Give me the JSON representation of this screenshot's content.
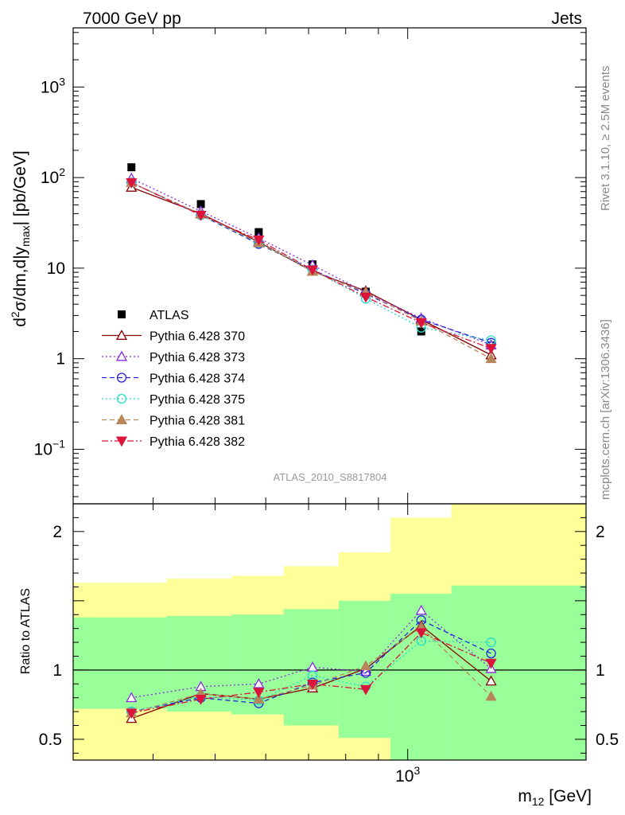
{
  "header": {
    "energy_label": "7000 GeV pp",
    "process_label": "Jets"
  },
  "side_text": {
    "rivet": "Rivet 3.1.10, ≥ 2.5M events",
    "source": "mcplots.cern.ch [arXiv:1306.3436]"
  },
  "analysis_id": "ATLAS_2010_S8817804",
  "colors": {
    "ATLAS": "#000000",
    "370": "#8b0000",
    "373": "#8a2be2",
    "374": "#2222dd",
    "375": "#22ddcc",
    "381": "#b8865b",
    "382": "#dc143c",
    "band_inner": "#99ff99",
    "band_outer": "#ffff99"
  },
  "chart_data": [
    {
      "type": "scatter",
      "panel": "main",
      "xlabel": "m12 [GeV]",
      "ylabel": "d2σ/dm,d|ymax| [pb/GeV]",
      "yscale": "log",
      "xscale": "log",
      "ylim": [
        0.025,
        4500
      ],
      "xlim": [
        300,
        1900
      ],
      "x": [
        370,
        475,
        585,
        710,
        860,
        1050,
        1350
      ],
      "legend_placement": "lower-left",
      "series": [
        {
          "name": "ATLAS",
          "marker": "filled-square",
          "values": [
            130,
            51,
            25,
            11,
            5.5,
            2.0,
            1.4
          ]
        },
        {
          "name": "Pythia 6.428 370",
          "marker": "open-triangle-up",
          "line": "solid",
          "values": [
            78,
            40,
            19.5,
            9.2,
            5.6,
            2.7,
            1.1
          ]
        },
        {
          "name": "Pythia 6.428 373",
          "marker": "open-triangle-up",
          "line": "dotted",
          "values": [
            98,
            42.5,
            21.5,
            10.8,
            5.4,
            2.8,
            1.42
          ]
        },
        {
          "name": "Pythia 6.428 374",
          "marker": "open-circle",
          "line": "dashed",
          "values": [
            88,
            38.5,
            18.5,
            9.6,
            5.2,
            2.7,
            1.5
          ]
        },
        {
          "name": "Pythia 6.428 375",
          "marker": "open-circle",
          "line": "dotted",
          "values": [
            88,
            38.5,
            19.0,
            9.6,
            4.6,
            2.2,
            1.6
          ]
        },
        {
          "name": "Pythia 6.428 381",
          "marker": "filled-triangle-up",
          "line": "dashed",
          "values": [
            88,
            39.5,
            19.0,
            9.2,
            5.4,
            2.6,
            1.0
          ]
        },
        {
          "name": "Pythia 6.428 382",
          "marker": "filled-triangle-down",
          "line": "dashdot",
          "values": [
            88,
            38.5,
            20.5,
            9.6,
            4.8,
            2.5,
            1.3
          ]
        }
      ],
      "y_ticks": [
        "10−1",
        "1",
        "10",
        "102",
        "103"
      ]
    },
    {
      "type": "scatter",
      "panel": "ratio",
      "ylabel": "Ratio to ATLAS",
      "xlabel": "m12 [GeV]",
      "ylim": [
        0.35,
        2.2
      ],
      "x": [
        370,
        475,
        585,
        710,
        860,
        1050,
        1350
      ],
      "x_ticks": [
        "103"
      ],
      "y_ticks": [
        "0.5",
        "1",
        "2"
      ],
      "band_edges": [
        300,
        420,
        530,
        640,
        780,
        940,
        1170,
        1900
      ],
      "inner_band": {
        "low": [
          0.72,
          0.7,
          0.68,
          0.6,
          0.51,
          0.0,
          0.0
        ],
        "high": [
          1.38,
          1.39,
          1.4,
          1.44,
          1.5,
          1.55,
          1.61
        ]
      },
      "outer_band": {
        "low": [
          0.0,
          0.0,
          0.0,
          0.0,
          0.0,
          0.0,
          0.0
        ],
        "high": [
          1.63,
          1.66,
          1.68,
          1.75,
          1.85,
          2.1,
          2.3
        ]
      },
      "series": [
        {
          "name": "Pythia 6.428 370",
          "values": [
            0.65,
            0.83,
            0.79,
            0.87,
            1.01,
            1.32,
            0.92
          ]
        },
        {
          "name": "Pythia 6.428 373",
          "values": [
            0.8,
            0.88,
            0.9,
            1.02,
            0.99,
            1.43,
            1.01
          ]
        },
        {
          "name": "Pythia 6.428 374",
          "values": [
            0.7,
            0.8,
            0.76,
            0.91,
            0.98,
            1.36,
            1.12
          ]
        },
        {
          "name": "Pythia 6.428 375",
          "values": [
            0.7,
            0.81,
            0.78,
            0.96,
            0.88,
            1.21,
            1.2
          ]
        },
        {
          "name": "Pythia 6.428 381",
          "values": [
            0.69,
            0.83,
            0.79,
            0.89,
            1.03,
            1.31,
            0.81
          ]
        },
        {
          "name": "Pythia 6.428 382",
          "values": [
            0.69,
            0.79,
            0.84,
            0.9,
            0.86,
            1.27,
            1.05
          ]
        }
      ]
    }
  ]
}
